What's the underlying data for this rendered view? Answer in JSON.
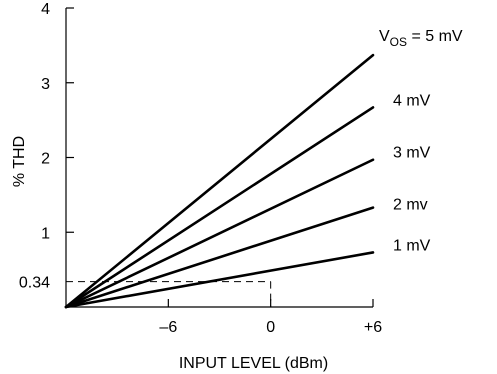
{
  "chart_data": {
    "type": "line",
    "title": "",
    "xlabel": "INPUT LEVEL (dBm)",
    "ylabel": "% THD",
    "x_ticks": [
      "–6",
      "0",
      "+6"
    ],
    "x_tick_values": [
      -6,
      0,
      6
    ],
    "y_ticks": [
      "1",
      "2",
      "3",
      "4"
    ],
    "y_tick_values": [
      1,
      2,
      3,
      4
    ],
    "xlim": [
      -12,
      6
    ],
    "ylim": [
      0,
      4
    ],
    "grid": false,
    "reference": {
      "label": "0.34",
      "x": 0,
      "y": 0.34
    },
    "series": [
      {
        "name": "1 mV",
        "x": [
          -12,
          6
        ],
        "y": [
          0,
          0.73
        ]
      },
      {
        "name": "2 mv",
        "x": [
          -12,
          6
        ],
        "y": [
          0,
          1.33
        ]
      },
      {
        "name": "3 mV",
        "x": [
          -12,
          6
        ],
        "y": [
          0,
          1.97
        ]
      },
      {
        "name": "4 mV",
        "x": [
          -12,
          6
        ],
        "y": [
          0,
          2.67
        ]
      },
      {
        "name": "5 mV",
        "label_prefix": "V",
        "label_subscript": "OS",
        "label_rest": " = 5 mV",
        "x": [
          -12,
          6
        ],
        "y": [
          0,
          3.37
        ]
      }
    ]
  }
}
